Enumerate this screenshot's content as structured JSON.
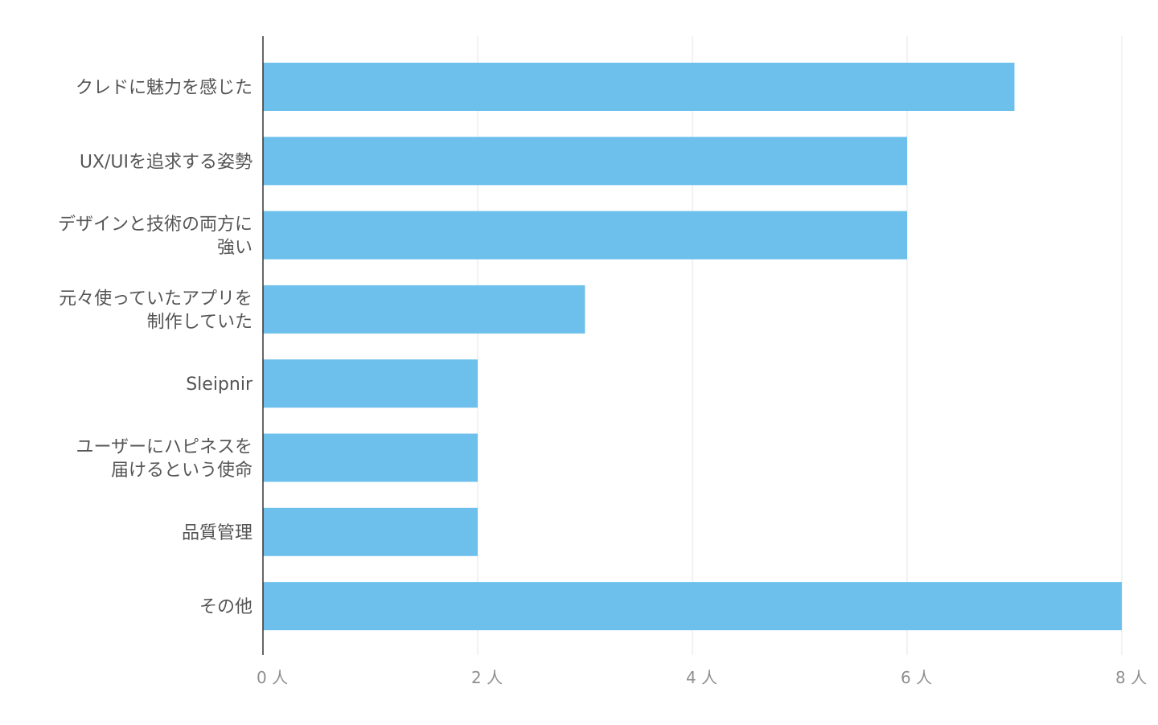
{
  "chart_data": {
    "type": "bar",
    "orientation": "horizontal",
    "categories": [
      [
        "クレドに魅力を感じた"
      ],
      [
        "UX/UIを追求する姿勢"
      ],
      [
        "デザインと技術の両方に",
        "強い"
      ],
      [
        "元々使っていたアプリを",
        "制作していた"
      ],
      [
        "Sleipnir"
      ],
      [
        "ユーザーにハピネスを",
        "届けるという使命"
      ],
      [
        "品質管理"
      ],
      [
        "その他"
      ]
    ],
    "values": [
      7,
      6,
      6,
      3,
      2,
      2,
      2,
      8
    ],
    "xlim": [
      0,
      8
    ],
    "xticks": [
      0,
      2,
      4,
      6,
      8
    ],
    "tick_labels": [
      "0 人",
      "2 人",
      "4 人",
      "6 人",
      "8 人"
    ],
    "title": "",
    "xlabel": "",
    "ylabel": "",
    "bar_color": "#6dc0ec",
    "gridline_color": "#e6e6e6",
    "axis_color": "#333333",
    "grid": true,
    "legend": "none"
  }
}
